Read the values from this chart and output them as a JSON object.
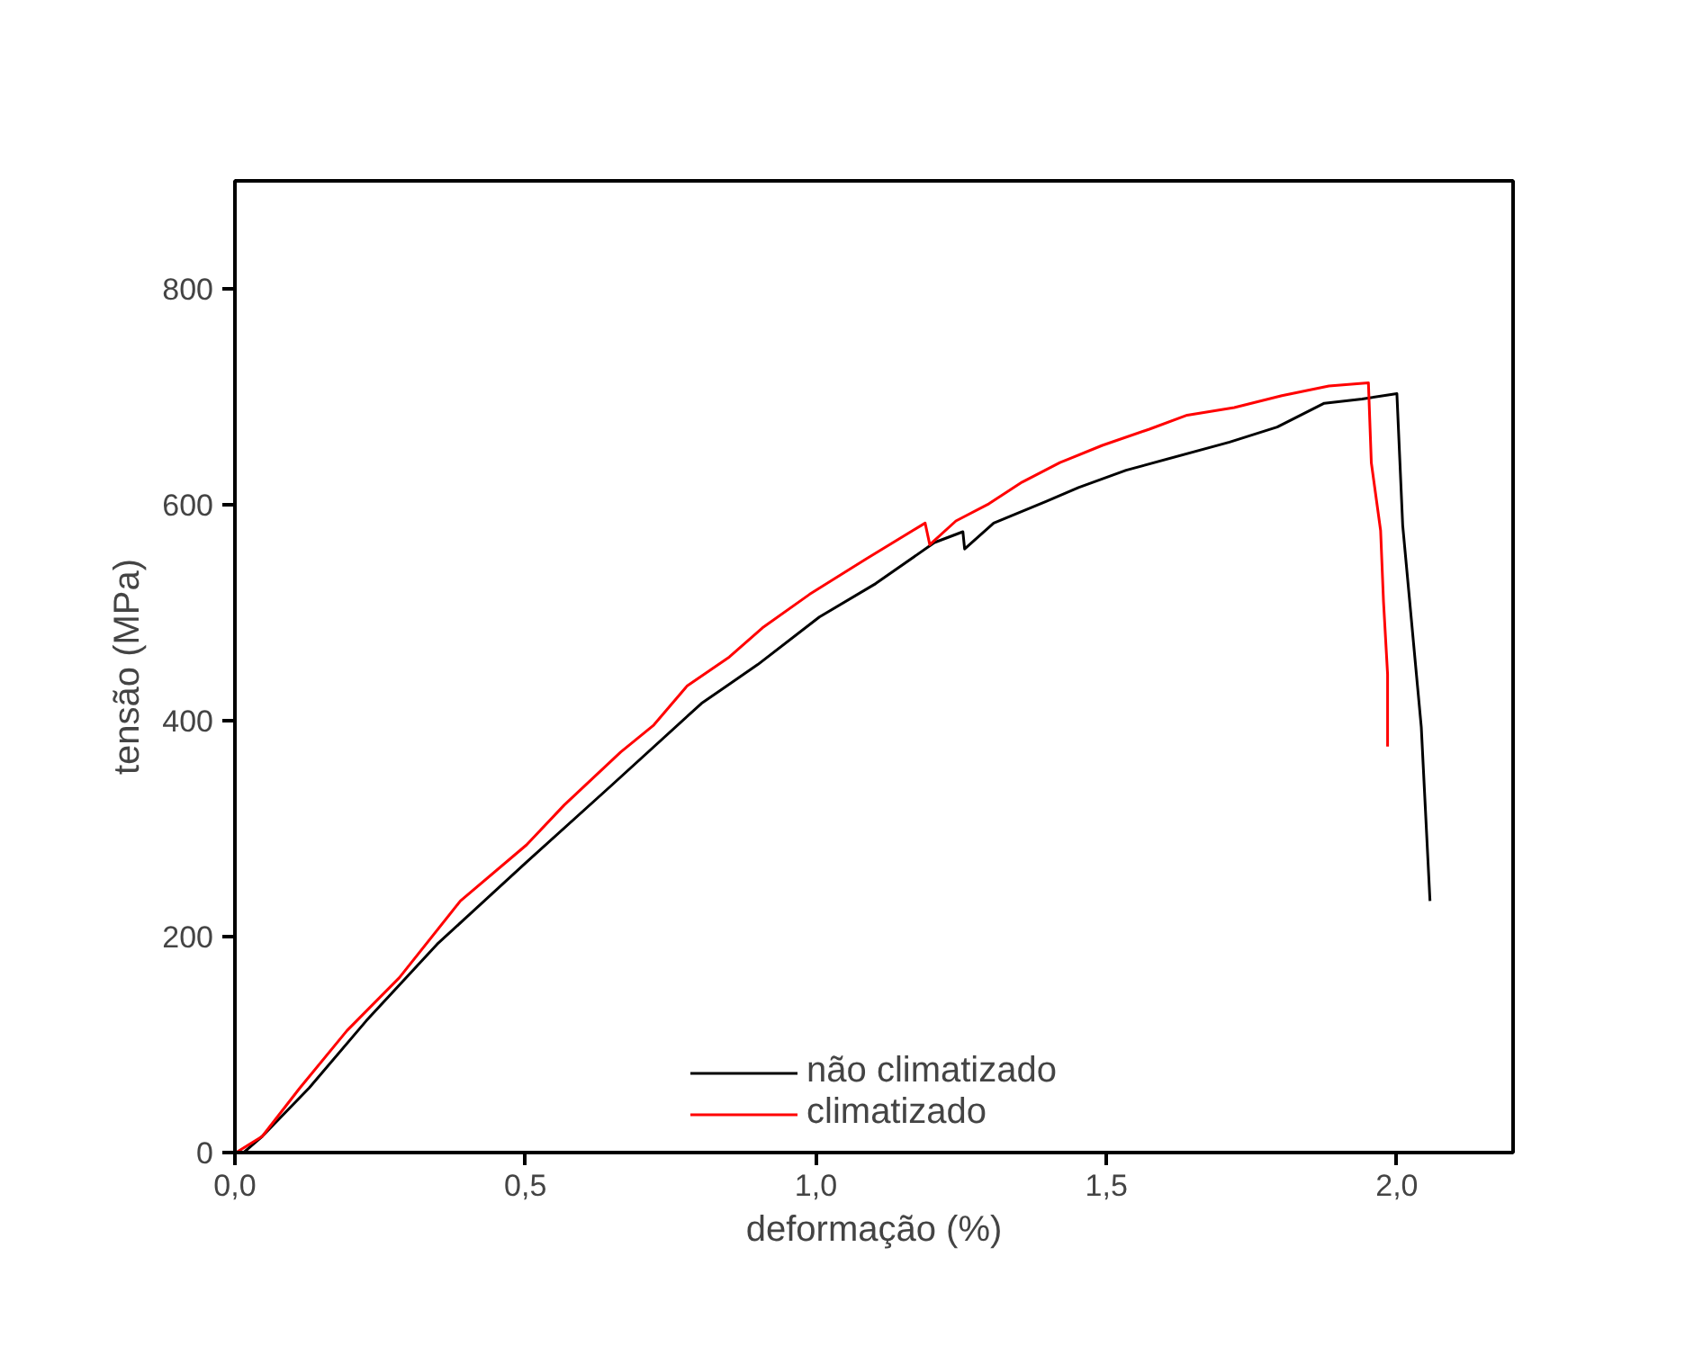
{
  "chart_data": {
    "type": "line",
    "xlabel": "deformação (%)",
    "ylabel": "tensão (MPa)",
    "xlim": [
      0,
      2.2
    ],
    "ylim": [
      0,
      900
    ],
    "xticks": [
      {
        "value": 0,
        "label": "0,0"
      },
      {
        "value": 0.5,
        "label": "0,5"
      },
      {
        "value": 1.0,
        "label": "1,0"
      },
      {
        "value": 1.5,
        "label": "1,5"
      },
      {
        "value": 2.0,
        "label": "2,0"
      }
    ],
    "yticks": [
      0,
      200,
      400,
      600,
      800
    ],
    "grid": false,
    "legend": "bottom",
    "marker": "none",
    "line_style": "solid",
    "series": [
      {
        "name": "não climatizado",
        "color": "#000000",
        "x": [
          0.015,
          0.047,
          0.128,
          0.226,
          0.348,
          0.502,
          0.648,
          0.803,
          0.9,
          1.006,
          1.103,
          1.204,
          1.253,
          1.256,
          1.306,
          1.396,
          1.452,
          1.534,
          1.712,
          1.794,
          1.875,
          1.94,
          2.0,
          2.01,
          2.042,
          2.057
        ],
        "values": [
          0,
          15,
          60,
          122,
          193,
          269,
          340,
          416,
          452,
          496,
          527,
          565,
          575,
          559,
          583,
          603,
          616,
          632,
          658,
          672,
          694,
          698,
          703,
          581,
          394,
          233
        ]
      },
      {
        "name": "climatizado",
        "color": "#ff0000",
        "x": [
          0.002,
          0.047,
          0.112,
          0.193,
          0.283,
          0.388,
          0.502,
          0.567,
          0.664,
          0.721,
          0.778,
          0.851,
          0.908,
          0.989,
          1.087,
          1.188,
          1.196,
          1.241,
          1.298,
          1.355,
          1.42,
          1.493,
          1.574,
          1.639,
          1.72,
          1.802,
          1.883,
          1.951,
          1.956,
          1.972,
          1.977,
          1.984,
          1.984
        ],
        "values": [
          0,
          15,
          60,
          113,
          162,
          233,
          285,
          322,
          371,
          396,
          432,
          459,
          486,
          517,
          550,
          583,
          563,
          585,
          601,
          621,
          639,
          655,
          670,
          683,
          690,
          701,
          710,
          713,
          639,
          576,
          510,
          443,
          376
        ]
      }
    ]
  }
}
